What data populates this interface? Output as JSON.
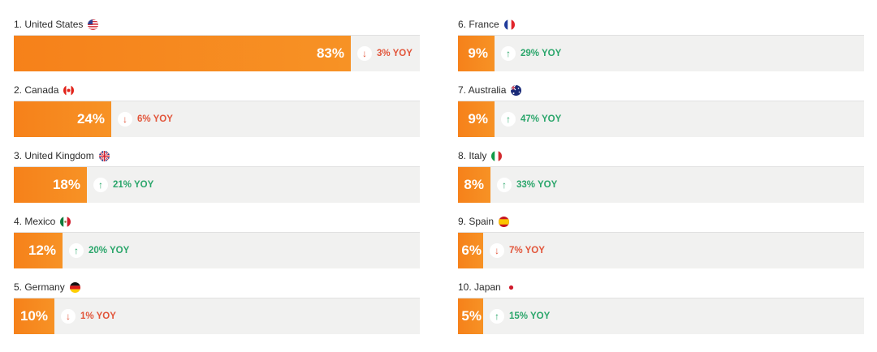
{
  "chart_data": {
    "type": "bar",
    "unit": "%",
    "bar_color": "#f6811a",
    "track_color": "#f1f1f0",
    "colors": {
      "down": "#e2553a",
      "up": "#2ba66b"
    },
    "rows": [
      {
        "label": "1. United States",
        "value": 83,
        "value_label": "83%",
        "yoy_text": "3% YOY",
        "direction": "down",
        "flag": "us-flag-icon"
      },
      {
        "label": "2. Canada",
        "value": 24,
        "value_label": "24%",
        "yoy_text": "6% YOY",
        "direction": "down",
        "flag": "canada-flag-icon"
      },
      {
        "label": "3. United Kingdom",
        "value": 18,
        "value_label": "18%",
        "yoy_text": "21% YOY",
        "direction": "up",
        "flag": "uk-flag-icon"
      },
      {
        "label": "4. Mexico",
        "value": 12,
        "value_label": "12%",
        "yoy_text": "20% YOY",
        "direction": "up",
        "flag": "mexico-flag-icon"
      },
      {
        "label": "5. Germany",
        "value": 10,
        "value_label": "10%",
        "yoy_text": "1% YOY",
        "direction": "down",
        "flag": "germany-flag-icon"
      },
      {
        "label": "6. France",
        "value": 9,
        "value_label": "9%",
        "yoy_text": "29% YOY",
        "direction": "up",
        "flag": "france-flag-icon"
      },
      {
        "label": "7. Australia",
        "value": 9,
        "value_label": "9%",
        "yoy_text": "47% YOY",
        "direction": "up",
        "flag": "australia-flag-icon"
      },
      {
        "label": "8. Italy",
        "value": 8,
        "value_label": "8%",
        "yoy_text": "33% YOY",
        "direction": "up",
        "flag": "italy-flag-icon"
      },
      {
        "label": "9. Spain",
        "value": 6,
        "value_label": "6%",
        "yoy_text": "7% YOY",
        "direction": "down",
        "flag": "spain-flag-icon"
      },
      {
        "label": "10. Japan",
        "value": 5,
        "value_label": "5%",
        "yoy_text": "15% YOY",
        "direction": "up",
        "flag": "japan-flag-icon"
      }
    ]
  }
}
